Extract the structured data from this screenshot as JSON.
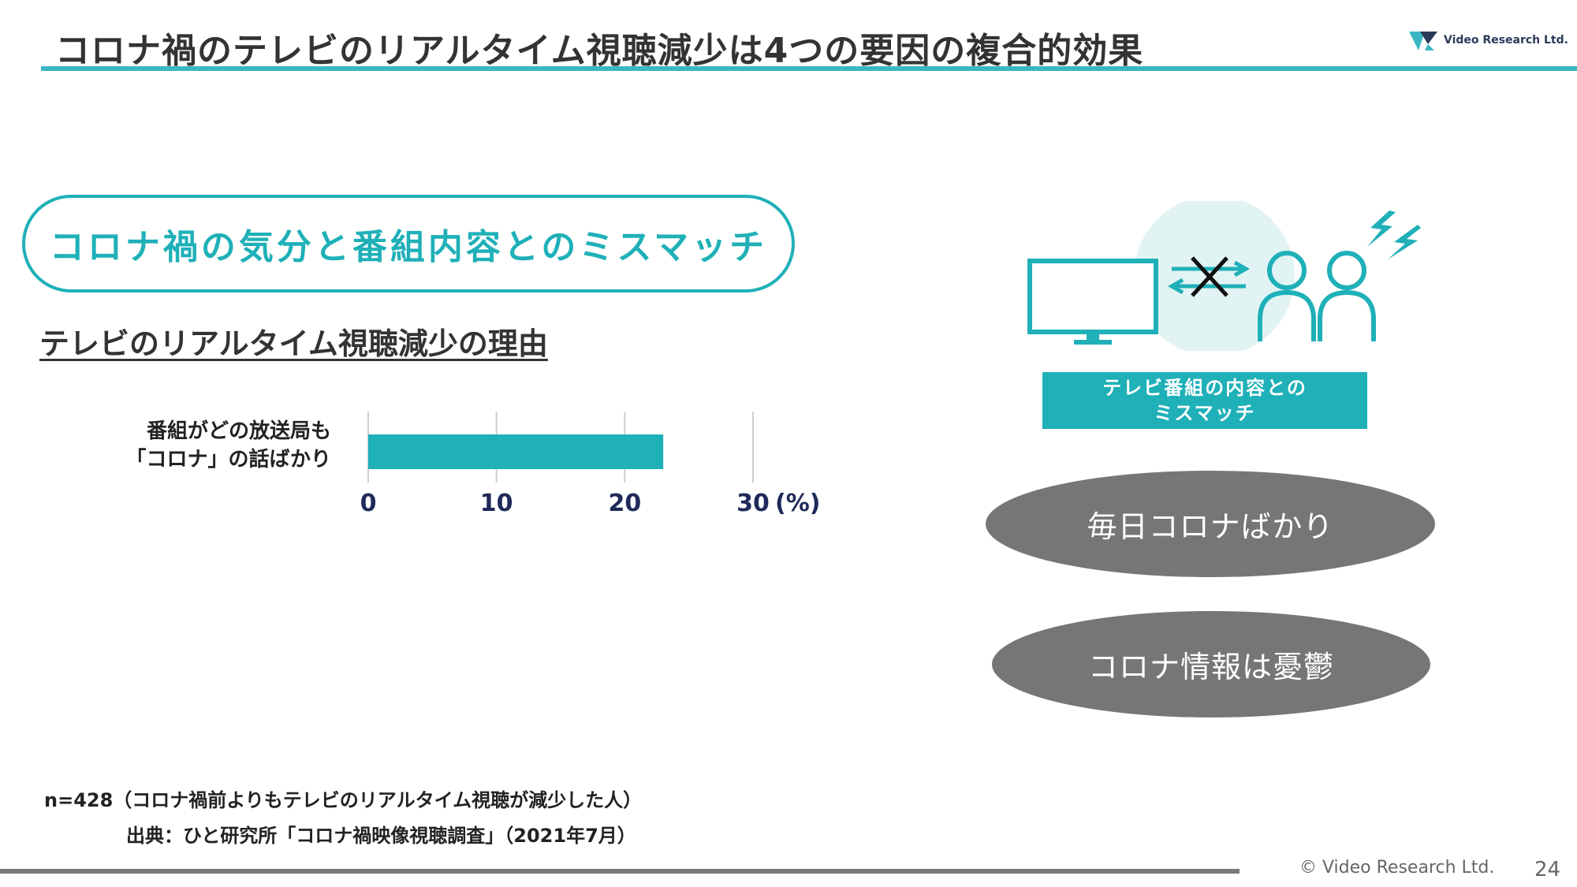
{
  "slide": {
    "title": "コロナ禍のテレビのリアルタイム視聴減少は4つの要因の複合的効果",
    "logo_text": "Video Research Ltd.",
    "factor_label": "コロナ禍の気分と番組内容とのミスマッチ",
    "chart_heading": "テレビのリアルタイム視聴減少の理由"
  },
  "chart_data": {
    "type": "bar",
    "orientation": "horizontal",
    "categories": [
      [
        "番組がどの放送局も",
        "「コロナ」の話ばかり"
      ]
    ],
    "values": [
      23
    ],
    "xticks": [
      "0",
      "10",
      "20",
      "30"
    ],
    "xlim": [
      0,
      30
    ],
    "unit_label": "(%)",
    "bar_color": "#1fb0b8",
    "grid": true
  },
  "notes": {
    "sample": "n=428（コロナ禍前よりもテレビのリアルタイム視聴が減少した人）",
    "source": "出典：ひと研究所「コロナ禍映像視聴調査」（2021年7月）"
  },
  "illustration": {
    "icons": [
      "tv-icon",
      "cross-icon",
      "arrows-icon",
      "person-icon",
      "person-icon",
      "lightning-icon"
    ],
    "label_lines": [
      "テレビ番組の内容との",
      "ミスマッチ"
    ]
  },
  "ovals": [
    "毎日コロナばかり",
    "コロナ情報は憂鬱"
  ],
  "footer": {
    "copyright": "© Video Research Ltd.",
    "page": "24"
  },
  "colors": {
    "accent": "#1fb0b8",
    "title_rule": "#3ab7c2",
    "oval": "#767676",
    "footer_rule": "#7a7a7a"
  }
}
